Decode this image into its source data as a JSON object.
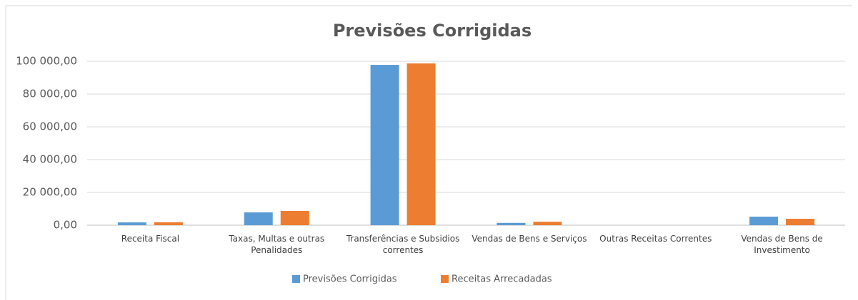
{
  "chart_data": {
    "type": "bar",
    "title": "Previsões Corrigidas",
    "categories": [
      "Receita Fiscal",
      "Taxas, Multas e outras Penalidades",
      "Transferências e Subsidios correntes",
      "Vendas de Bens e Serviços",
      "Outras Receitas Correntes",
      "Vendas de Bens de Investimento"
    ],
    "series": [
      {
        "name": "Previsões Corrigidas",
        "color": "#5b9bd5",
        "values": [
          1700,
          7800,
          97800,
          1400,
          0,
          5200
        ]
      },
      {
        "name": "Receitas Arrecadadas",
        "color": "#ed7d31",
        "values": [
          1800,
          8700,
          98700,
          2100,
          0,
          3900
        ]
      }
    ],
    "ylim": [
      0,
      100000
    ],
    "yticks": [
      {
        "value": 0,
        "label": "0,00"
      },
      {
        "value": 20000,
        "label": "20 000,00"
      },
      {
        "value": 40000,
        "label": "40 000,00"
      },
      {
        "value": 60000,
        "label": "60 000,00"
      },
      {
        "value": 80000,
        "label": "80 000,00"
      },
      {
        "value": 100000,
        "label": "100 000,00"
      }
    ],
    "grid": true,
    "legend": "bottom"
  }
}
